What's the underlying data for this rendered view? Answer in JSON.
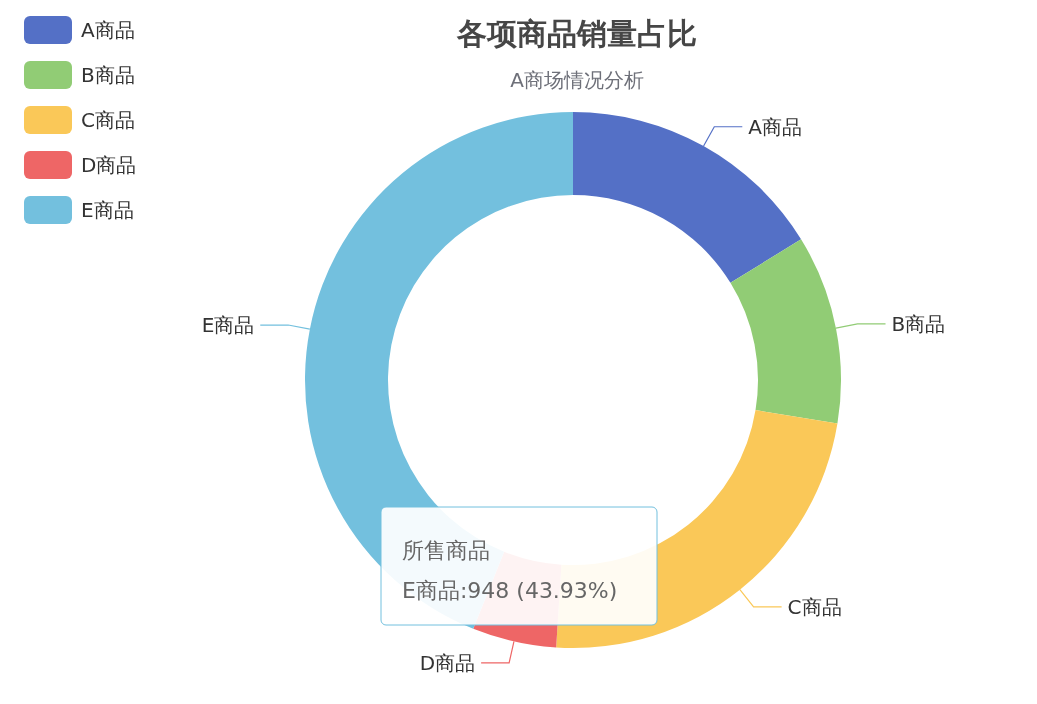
{
  "chart_data": {
    "type": "donut",
    "title": "各项商品销量占比",
    "subtitle": "A商场情况分析",
    "categories": [
      "A商品",
      "B商品",
      "C商品",
      "D商品",
      "E商品"
    ],
    "values": [
      16.2,
      11.4,
      23.4,
      5.07,
      43.93
    ],
    "colors": [
      "#5470c6",
      "#91cc75",
      "#fac858",
      "#ee6666",
      "#73c0de"
    ],
    "legend": "top left",
    "annotations": [
      "所售商品",
      "E商品:948 (43.93%)"
    ]
  }
}
